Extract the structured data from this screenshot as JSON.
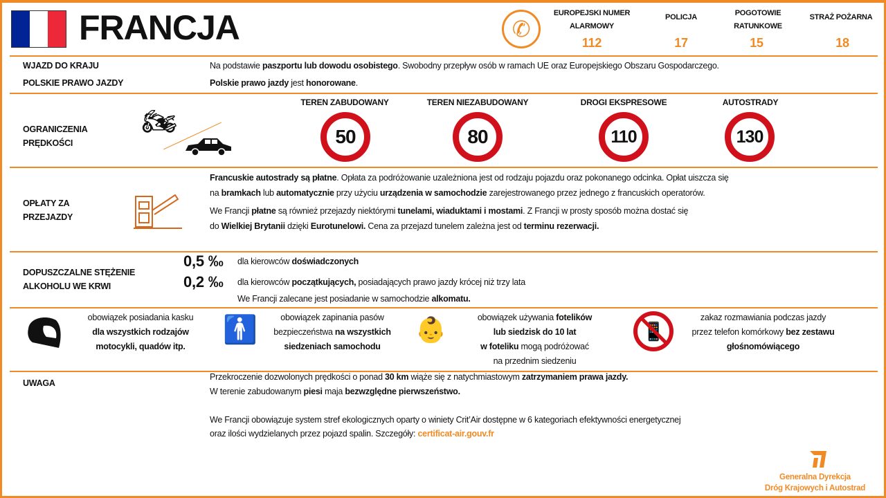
{
  "header": {
    "title": "FRANCJA",
    "flag_colors": [
      "#002395",
      "#FFFFFF",
      "#ED2939"
    ],
    "emergency": [
      {
        "label": "EUROPEJSKI  NUMER ALARMOWY",
        "number": "112"
      },
      {
        "label": "POLICJA",
        "number": "17"
      },
      {
        "label": "POGOTOWIE RATUNKOWE",
        "number": "15"
      },
      {
        "label": "STRAŻ POŻARNA",
        "number": "18"
      }
    ]
  },
  "entry": {
    "label": "WJAZD DO KRAJU",
    "text": [
      {
        "t": "Na podstawie "
      },
      {
        "t": "paszportu lub dowodu osobistego",
        "b": 1
      },
      {
        "t": ". Swobodny przepływ osób w ramach UE oraz Europejskiego Obszaru Gospodarczego."
      }
    ]
  },
  "license": {
    "label": "POLSKIE PRAWO JAZDY",
    "text": [
      {
        "t": "Polskie prawo jazdy",
        "b": 1
      },
      {
        "t": " jest "
      },
      {
        "t": "honorowane",
        "b": 1
      },
      {
        "t": "."
      }
    ]
  },
  "speed": {
    "label": "OGRANICZENIA PRĘDKOŚCI",
    "limits": [
      {
        "label": "TEREN ZABUDOWANY",
        "value": "50"
      },
      {
        "label": "TEREN NIEZABUDOWANY",
        "value": "80"
      },
      {
        "label": "DROGI EKSPRESOWE",
        "value": "110"
      },
      {
        "label": "AUTOSTRADY",
        "value": "130"
      }
    ]
  },
  "tolls": {
    "label": "OPŁATY ZA PRZEJAZDY",
    "lines": [
      [
        {
          "t": "Francuskie autostrady są płatne",
          "b": 1
        },
        {
          "t": ". Opłata za podróżowanie uzależniona jest od rodzaju pojazdu oraz pokonanego odcinka. Opłat uiszcza się"
        }
      ],
      [
        {
          "t": "na "
        },
        {
          "t": "bramkach",
          "b": 1
        },
        {
          "t": " lub "
        },
        {
          "t": "automatycznie",
          "b": 1
        },
        {
          "t": " przy użyciu "
        },
        {
          "t": "urządzenia w samochodzie",
          "b": 1
        },
        {
          "t": " zarejestrowanego przez jednego z francuskich operatorów."
        }
      ],
      [
        {
          "t": "We Francji "
        },
        {
          "t": "płatne",
          "b": 1
        },
        {
          "t": " są również przejazdy niektórymi  "
        },
        {
          "t": "tunelami, wiaduktami i mostami",
          "b": 1
        },
        {
          "t": ". Z Francji w prosty sposób można dostać się"
        }
      ],
      [
        {
          "t": "do "
        },
        {
          "t": "Wielkiej Brytanii",
          "b": 1
        },
        {
          "t": " dzięki "
        },
        {
          "t": "Eurotunelowi.",
          "b": 1
        },
        {
          "t": " Cena za przejazd tunelem zależna jest od "
        },
        {
          "t": "terminu rezerwacji.",
          "b": 1
        }
      ]
    ]
  },
  "alcohol": {
    "label": "DOPUSZCZALNE STĘŻENIE ALKOHOLU WE KRWI",
    "limits": [
      {
        "value": "0,5 ‰",
        "text": [
          {
            "t": "dla kierowców  "
          },
          {
            "t": "doświadczonych",
            "b": 1
          }
        ]
      },
      {
        "value": "0,2 ‰",
        "text": [
          {
            "t": "dla kierowców  "
          },
          {
            "t": "początkujących,",
            "b": 1
          },
          {
            "t": " posiadających  prawo jazdy krócej niż trzy lata"
          }
        ]
      }
    ],
    "note": [
      {
        "t": "We Francji zalecane jest posiadanie w samochodzie  "
      },
      {
        "t": "alkomatu.",
        "b": 1
      }
    ]
  },
  "rules": [
    {
      "icon": "helmet-icon",
      "lines": [
        [
          {
            "t": "obowiązek posiadania kasku"
          }
        ],
        [
          {
            "t": "dla wszystkich rodzajów",
            "b": 1
          }
        ],
        [
          {
            "t": "motocykli, quadów itp.",
            "b": 1
          }
        ]
      ]
    },
    {
      "icon": "seatbelt-icon",
      "lines": [
        [
          {
            "t": "obowiązek zapinania pasów"
          }
        ],
        [
          {
            "t": "bezpieczeństwa "
          },
          {
            "t": "na wszystkich",
            "b": 1
          }
        ],
        [
          {
            "t": "siedzeniach samochodu",
            "b": 1
          }
        ]
      ]
    },
    {
      "icon": "child-seat-icon",
      "lines": [
        [
          {
            "t": "obowiązek używania "
          },
          {
            "t": "fotelików",
            "b": 1
          }
        ],
        [
          {
            "t": "lub siedzisk do 10 lat",
            "b": 1
          }
        ],
        [
          {
            "t": "w foteliku",
            "b": 1
          },
          {
            "t": " mogą podróżować"
          }
        ],
        [
          {
            "t": "na przednim siedzeniu"
          }
        ]
      ]
    },
    {
      "icon": "no-phone-icon",
      "lines": [
        [
          {
            "t": "zakaz rozmawiania  podczas jazdy"
          }
        ],
        [
          {
            "t": "przez telefon komórkowy   "
          },
          {
            "t": "bez zestawu",
            "b": 1
          }
        ],
        [
          {
            "t": "głośnomówiącego",
            "b": 1
          }
        ]
      ]
    }
  ],
  "notice": {
    "label": "UWAGA",
    "lines": [
      [
        {
          "t": "Przekroczenie dozwolonych  prędkości o ponad "
        },
        {
          "t": "30 km",
          "b": 1
        },
        {
          "t": " wiąże się z natychmiastowym  "
        },
        {
          "t": "zatrzymaniem prawa jazdy.",
          "b": 1
        }
      ],
      [
        {
          "t": "W terenie zabudowanym  "
        },
        {
          "t": "piesi",
          "b": 1
        },
        {
          "t": " maja "
        },
        {
          "t": "bezwzględne pierwszeństwo.",
          "b": 1
        }
      ],
      [
        {
          "t": ""
        }
      ],
      [
        {
          "t": "We Francji obowiązuje system stref ekologicznych oparty o winiety Crit’Air dostępne w 6 kategoriach efektywności energetycznej"
        }
      ],
      [
        {
          "t": "oraz ilości wydzielanych przez pojazd  spalin. Szczegóły: "
        },
        {
          "t": "certificat-air.gouv.fr",
          "o": 1
        }
      ]
    ]
  },
  "footer": {
    "logo_text": [
      "Generalna Dyrekcja",
      "Dróg Krajowych i Autostrad"
    ]
  },
  "colors": {
    "accent": "#F08A24",
    "sign_red": "#D0111B"
  }
}
